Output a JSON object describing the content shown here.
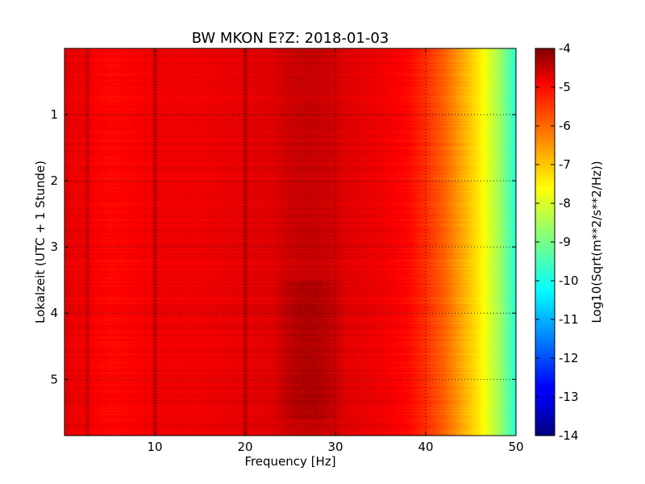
{
  "chart_data": {
    "type": "heatmap",
    "title": "BW MKON E?Z: 2018-01-03",
    "xlabel": "Frequency [Hz]",
    "ylabel": "Lokalzeit (UTC + 1 Stunde)",
    "xlim": [
      0,
      50
    ],
    "ylim": [
      5.85,
      0
    ],
    "x_ticks": [
      10,
      20,
      30,
      40,
      50
    ],
    "y_ticks": [
      1,
      2,
      3,
      4,
      5
    ],
    "grid": true,
    "colormap": "jet",
    "colorbar": {
      "label": "Log10(Sqrt(m**2/s**2/Hz))",
      "range": [
        -14,
        -4
      ],
      "ticks": [
        -4,
        -5,
        -6,
        -7,
        -8,
        -9,
        -10,
        -11,
        -12,
        -13,
        -14
      ]
    },
    "spectral_profile": {
      "frequency_hz": [
        0,
        2,
        5,
        8,
        10,
        15,
        20,
        25,
        30,
        35,
        38,
        40,
        42,
        44,
        46,
        48,
        50
      ],
      "log10_amplitude": [
        -5.0,
        -5.1,
        -5.3,
        -5.2,
        -5.1,
        -5.1,
        -5.0,
        -4.9,
        -4.9,
        -5.1,
        -5.3,
        -5.7,
        -6.2,
        -6.9,
        -7.6,
        -8.6,
        -9.9
      ]
    },
    "features": {
      "vertical_lines_hz": [
        2.5,
        10,
        20
      ],
      "noisy_band_hz": [
        23,
        31
      ],
      "noisy_hours": [
        3.5,
        5.6
      ]
    }
  }
}
